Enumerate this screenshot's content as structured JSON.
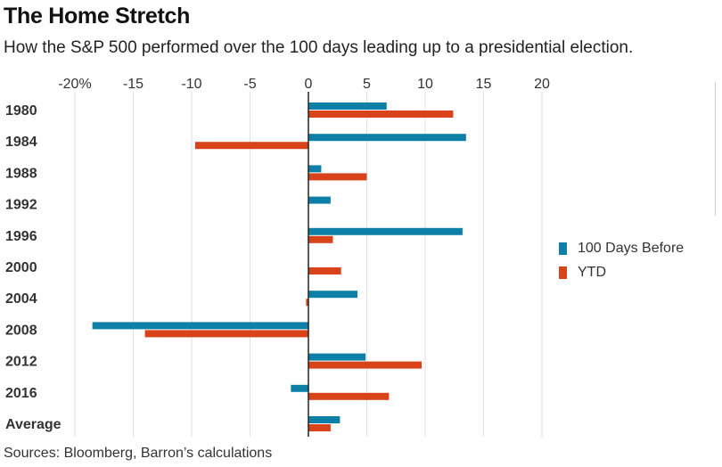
{
  "title": "The Home Stretch",
  "subtitle": "How the S&P 500 performed over the 100 days leading up to a presidential election.",
  "source": "Sources: Bloomberg, Barron’s calculations",
  "chart_data": {
    "type": "bar",
    "orientation": "horizontal",
    "categories": [
      "1980",
      "1984",
      "1988",
      "1992",
      "1996",
      "2000",
      "2004",
      "2008",
      "2012",
      "2016",
      "Average"
    ],
    "series": [
      {
        "name": "100 Days Before",
        "color": "#0e7fa6",
        "values": [
          6.7,
          13.5,
          1.1,
          1.9,
          13.2,
          0.0,
          4.2,
          -18.5,
          4.9,
          -1.5,
          2.7
        ]
      },
      {
        "name": "YTD",
        "color": "#d9431a",
        "values": [
          12.4,
          -9.7,
          5.0,
          0.0,
          2.1,
          2.8,
          -0.2,
          -14.0,
          9.7,
          6.9,
          1.9
        ]
      }
    ],
    "xlim": [
      -20,
      20
    ],
    "ticks": [
      "-20%",
      "-15",
      "-10",
      "-5",
      "0",
      "5",
      "10",
      "15",
      "20"
    ],
    "tick_values": [
      -20,
      -15,
      -10,
      -5,
      0,
      5,
      10,
      15,
      20
    ],
    "grid": true,
    "legend_position": "right"
  }
}
